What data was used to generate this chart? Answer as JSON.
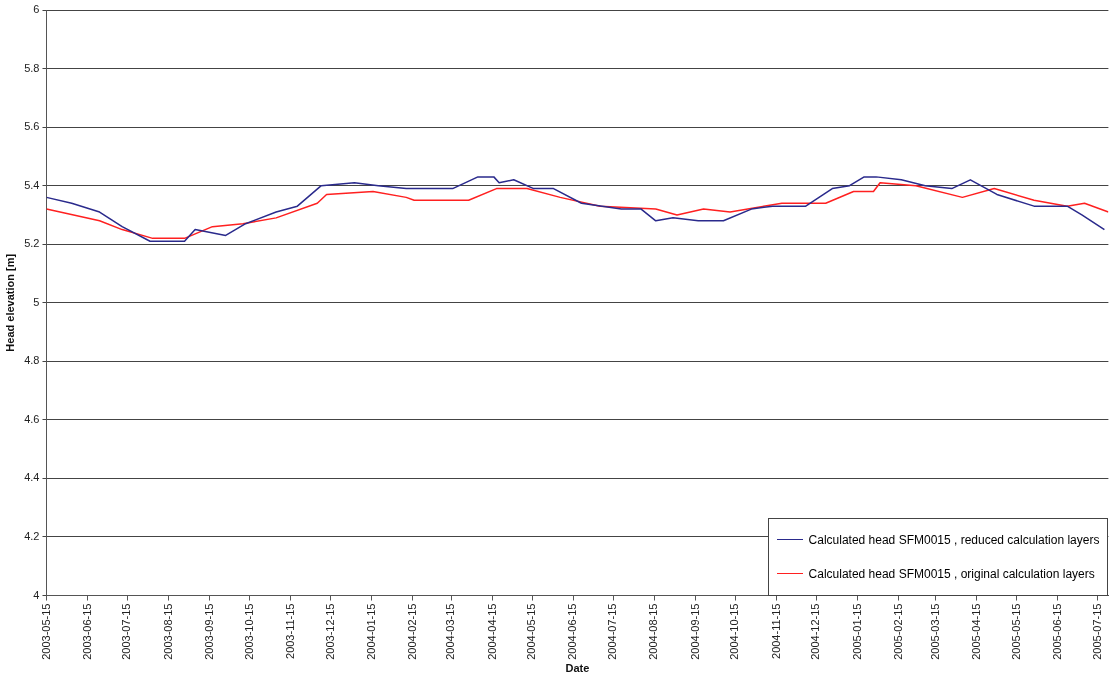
{
  "chart_data": {
    "type": "line",
    "xlabel": "Date",
    "ylabel": "Head elevation [m]",
    "xlim": [
      "2003-05-15",
      "2005-07-23"
    ],
    "ylim": [
      4,
      6
    ],
    "xticks": [
      "2003-05-15",
      "2003-06-15",
      "2003-07-15",
      "2003-08-15",
      "2003-09-15",
      "2003-10-15",
      "2003-11-15",
      "2003-12-15",
      "2004-01-15",
      "2004-02-15",
      "2004-03-15",
      "2004-04-15",
      "2004-05-15",
      "2004-06-15",
      "2004-07-15",
      "2004-08-15",
      "2004-09-15",
      "2004-10-15",
      "2004-11-15",
      "2004-12-15",
      "2005-01-15",
      "2005-02-15",
      "2005-03-15",
      "2005-04-15",
      "2005-05-15",
      "2005-06-15",
      "2005-07-15"
    ],
    "yticks": [
      4,
      4.2,
      4.4,
      4.6,
      4.8,
      5,
      5.2,
      5.4,
      5.6,
      5.8,
      6
    ],
    "grid": "y",
    "legend": "bottom right",
    "marker": "none",
    "line_style": "solid",
    "series": [
      {
        "name": "Calculated head SFM0015 , reduced calculation layers",
        "color": "#2a2a8c",
        "x": [
          "2003-05-15",
          "2003-06-03",
          "2003-06-24",
          "2003-07-11",
          "2003-08-01",
          "2003-08-27",
          "2003-09-04",
          "2003-09-27",
          "2003-10-12",
          "2003-11-04",
          "2003-11-20",
          "2003-12-08",
          "2004-01-02",
          "2004-01-20",
          "2004-02-10",
          "2004-03-16",
          "2004-04-04",
          "2004-04-16",
          "2004-04-20",
          "2004-05-01",
          "2004-05-16",
          "2004-05-31",
          "2004-06-21",
          "2004-07-21",
          "2004-08-05",
          "2004-08-16",
          "2004-08-29",
          "2004-09-17",
          "2004-10-06",
          "2004-10-27",
          "2004-11-12",
          "2004-12-07",
          "2004-12-27",
          "2005-01-09",
          "2005-01-20",
          "2005-01-29",
          "2005-02-17",
          "2005-03-07",
          "2005-03-27",
          "2005-04-10",
          "2005-04-30",
          "2005-05-28",
          "2005-06-22",
          "2005-07-03",
          "2005-07-20"
        ],
        "values": [
          5.36,
          5.34,
          5.31,
          5.26,
          5.21,
          5.21,
          5.25,
          5.23,
          5.27,
          5.31,
          5.33,
          5.4,
          5.41,
          5.4,
          5.39,
          5.39,
          5.43,
          5.43,
          5.41,
          5.42,
          5.39,
          5.39,
          5.34,
          5.32,
          5.32,
          5.28,
          5.29,
          5.28,
          5.28,
          5.32,
          5.33,
          5.33,
          5.39,
          5.4,
          5.43,
          5.43,
          5.42,
          5.4,
          5.39,
          5.42,
          5.37,
          5.33,
          5.33,
          5.3,
          5.25
        ]
      },
      {
        "name": "Calculated head SFM0015 , original calculation layers",
        "color": "#ff2020",
        "x": [
          "2003-05-15",
          "2003-06-24",
          "2003-07-11",
          "2003-08-03",
          "2003-08-27",
          "2003-09-17",
          "2003-10-10",
          "2003-11-04",
          "2003-12-05",
          "2003-12-12",
          "2004-01-16",
          "2004-02-10",
          "2004-02-16",
          "2004-03-28",
          "2004-04-18",
          "2004-05-11",
          "2004-06-05",
          "2004-07-05",
          "2004-08-16",
          "2004-09-01",
          "2004-09-21",
          "2004-10-11",
          "2004-11-19",
          "2004-12-22",
          "2005-01-12",
          "2005-01-27",
          "2005-02-01",
          "2005-02-28",
          "2005-04-04",
          "2005-04-28",
          "2005-05-28",
          "2005-06-22",
          "2005-07-05",
          "2005-07-23"
        ],
        "values": [
          5.32,
          5.28,
          5.25,
          5.22,
          5.22,
          5.26,
          5.27,
          5.29,
          5.34,
          5.37,
          5.38,
          5.36,
          5.35,
          5.35,
          5.39,
          5.39,
          5.36,
          5.33,
          5.32,
          5.3,
          5.32,
          5.31,
          5.34,
          5.34,
          5.38,
          5.38,
          5.41,
          5.4,
          5.36,
          5.39,
          5.35,
          5.33,
          5.34,
          5.31
        ]
      }
    ]
  }
}
